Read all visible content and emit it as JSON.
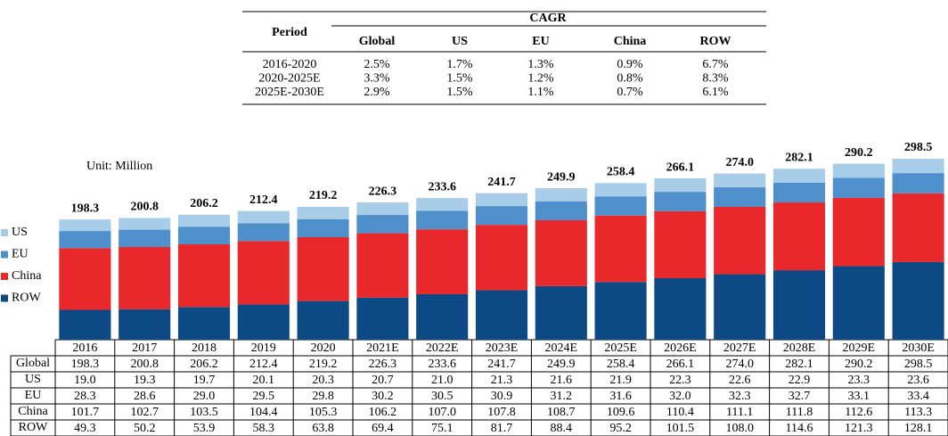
{
  "cagr_table": {
    "header": {
      "period": "Period",
      "group": "CAGR",
      "columns": [
        "Global",
        "US",
        "EU",
        "China",
        "ROW"
      ]
    },
    "rows": [
      [
        "2016-2020",
        "2.5%",
        "1.7%",
        "1.3%",
        "0.9%",
        "6.7%"
      ],
      [
        "2020-2025E",
        "3.3%",
        "1.5%",
        "1.2%",
        "0.8%",
        "8.3%"
      ],
      [
        "2025E-2030E",
        "2.9%",
        "1.5%",
        "1.1%",
        "0.7%",
        "6.1%"
      ]
    ]
  },
  "chart_data": {
    "type": "bar",
    "stacked": true,
    "unit_label": "Unit: Million",
    "total_name": "Global",
    "categories": [
      "2016",
      "2017",
      "2018",
      "2019",
      "2020",
      "2021E",
      "2022E",
      "2023E",
      "2024E",
      "2025E",
      "2026E",
      "2027E",
      "2028E",
      "2029E",
      "2030E"
    ],
    "ylim": [
      0,
      300
    ],
    "series": [
      {
        "name": "US",
        "color": "#a7cde9",
        "values": [
          19.0,
          19.3,
          19.7,
          20.1,
          20.3,
          20.7,
          21.0,
          21.3,
          21.6,
          21.9,
          22.3,
          22.6,
          22.9,
          23.3,
          23.6
        ],
        "value_labels": [
          "19.0",
          "19.3",
          "19.7",
          "20.1",
          "20.3",
          "20.7",
          "21.0",
          "21.3",
          "21.6",
          "21.9",
          "22.3",
          "22.6",
          "22.9",
          "23.3",
          "23.6"
        ]
      },
      {
        "name": "EU",
        "color": "#4f8fcb",
        "values": [
          28.3,
          28.6,
          29.0,
          29.5,
          29.8,
          30.2,
          30.5,
          30.9,
          31.2,
          31.6,
          32.0,
          32.3,
          32.7,
          33.1,
          33.4
        ],
        "value_labels": [
          "28.3",
          "28.6",
          "29.0",
          "29.5",
          "29.8",
          "30.2",
          "30.5",
          "30.9",
          "31.2",
          "31.6",
          "32.0",
          "32.3",
          "32.7",
          "33.1",
          "33.4"
        ]
      },
      {
        "name": "China",
        "color": "#e8282a",
        "values": [
          101.7,
          102.7,
          103.5,
          104.4,
          105.3,
          106.2,
          107.0,
          107.8,
          108.7,
          109.6,
          110.4,
          111.1,
          111.8,
          112.6,
          113.3
        ],
        "value_labels": [
          "101.7",
          "102.7",
          "103.5",
          "104.4",
          "105.3",
          "106.2",
          "107.0",
          "107.8",
          "108.7",
          "109.6",
          "110.4",
          "111.1",
          "111.8",
          "112.6",
          "113.3"
        ]
      },
      {
        "name": "ROW",
        "color": "#0d4a85",
        "values": [
          49.3,
          50.2,
          53.9,
          58.3,
          63.8,
          69.4,
          75.1,
          81.7,
          88.4,
          95.2,
          101.5,
          108.0,
          114.6,
          121.3,
          128.1
        ],
        "value_labels": [
          "49.3",
          "50.2",
          "53.9",
          "58.3",
          "63.8",
          "69.4",
          "75.1",
          "81.7",
          "88.4",
          "95.2",
          "101.5",
          "108.0",
          "114.6",
          "121.3",
          "128.1"
        ]
      }
    ],
    "totals": [
      198.3,
      200.8,
      206.2,
      212.4,
      219.2,
      226.3,
      233.6,
      241.7,
      249.9,
      258.4,
      266.1,
      274.0,
      282.1,
      290.2,
      298.5
    ],
    "total_labels": [
      "198.3",
      "200.8",
      "206.2",
      "212.4",
      "219.2",
      "226.3",
      "233.6",
      "241.7",
      "249.9",
      "258.4",
      "266.1",
      "274.0",
      "282.1",
      "290.2",
      "298.5"
    ]
  }
}
